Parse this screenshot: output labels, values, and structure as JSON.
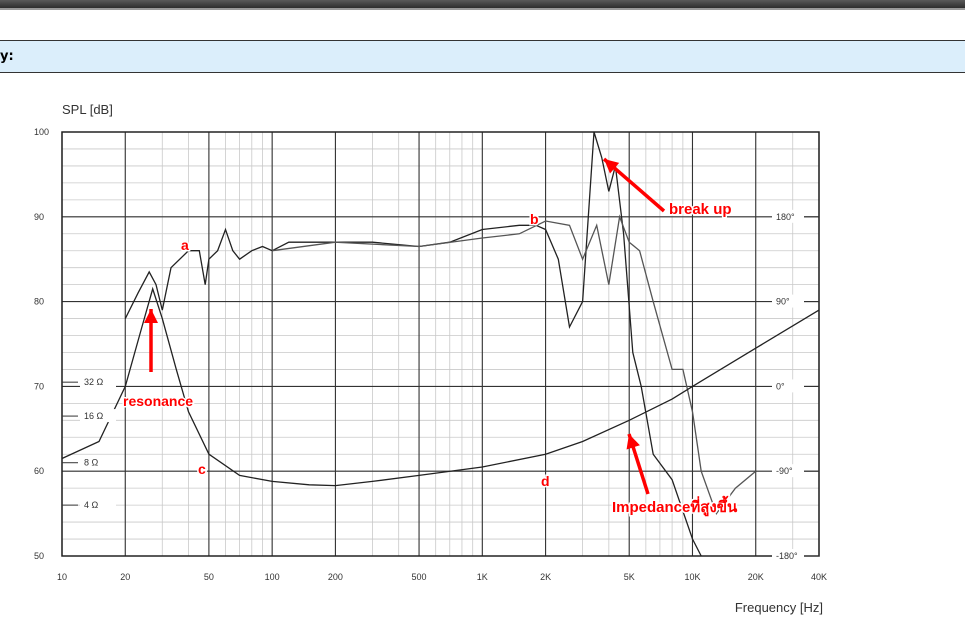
{
  "header": {
    "label": "y:"
  },
  "chart_data": {
    "type": "line",
    "ylabel": "SPL  [dB]",
    "xlabel": "Frequency  [Hz]",
    "xscale": "log",
    "xlim": [
      10,
      40000
    ],
    "ylim": [
      50,
      100
    ],
    "x_ticks": [
      "10",
      "20",
      "50",
      "100",
      "200",
      "500",
      "1K",
      "2K",
      "5K",
      "10K",
      "20K",
      "40K"
    ],
    "y_ticks": [
      "50",
      "60",
      "70",
      "80",
      "90",
      "100"
    ],
    "impedance_ticks": [
      "32 Ω",
      "16 Ω",
      "8 Ω",
      "4 Ω"
    ],
    "phase_ticks": [
      "180°",
      "90°",
      "0°",
      "-90°",
      "-180°"
    ],
    "grid": true,
    "series": [
      {
        "values": [
          [
            20,
            78
          ],
          [
            23,
            81
          ],
          [
            26,
            83.5
          ],
          [
            28,
            82
          ],
          [
            30,
            79
          ],
          [
            33,
            84
          ],
          [
            40,
            86
          ],
          [
            45,
            86
          ],
          [
            48,
            82
          ],
          [
            50,
            85
          ],
          [
            55,
            86
          ],
          [
            60,
            88.5
          ],
          [
            65,
            86
          ],
          [
            70,
            85
          ],
          [
            80,
            86
          ],
          [
            90,
            86.5
          ],
          [
            100,
            86
          ],
          [
            120,
            87
          ],
          [
            150,
            87
          ],
          [
            200,
            87
          ],
          [
            300,
            87
          ],
          [
            500,
            86.5
          ],
          [
            700,
            87
          ],
          [
            1000,
            88.5
          ],
          [
            1500,
            89
          ],
          [
            1800,
            89
          ],
          [
            2000,
            88.5
          ],
          [
            2300,
            85
          ],
          [
            2600,
            77
          ],
          [
            3000,
            80
          ],
          [
            3400,
            100
          ],
          [
            3700,
            97
          ],
          [
            4000,
            93
          ],
          [
            4300,
            96
          ],
          [
            4700,
            88
          ],
          [
            5200,
            74
          ],
          [
            5700,
            70
          ],
          [
            6500,
            62
          ],
          [
            8000,
            59
          ],
          [
            10000,
            52
          ],
          [
            11000,
            50
          ]
        ]
      },
      {
        "values": [
          [
            100,
            86
          ],
          [
            200,
            87
          ],
          [
            500,
            86.5
          ],
          [
            1000,
            87.5
          ],
          [
            1500,
            88
          ],
          [
            2000,
            89.5
          ],
          [
            2600,
            89
          ],
          [
            3000,
            85
          ],
          [
            3500,
            89
          ],
          [
            4000,
            82
          ],
          [
            4500,
            90
          ],
          [
            5000,
            87
          ],
          [
            5600,
            86
          ],
          [
            6500,
            80
          ],
          [
            8000,
            72
          ],
          [
            9000,
            72
          ],
          [
            10000,
            67
          ],
          [
            11000,
            60
          ],
          [
            13000,
            55
          ],
          [
            16000,
            58
          ],
          [
            20000,
            60
          ]
        ]
      },
      {
        "values": [
          [
            10,
            61.5
          ],
          [
            15,
            63.5
          ],
          [
            20,
            70
          ],
          [
            24,
            77
          ],
          [
            27,
            81.5
          ],
          [
            30,
            78
          ],
          [
            35,
            72
          ],
          [
            40,
            67
          ],
          [
            50,
            62
          ],
          [
            70,
            59.5
          ],
          [
            100,
            58.8
          ],
          [
            150,
            58.4
          ],
          [
            200,
            58.3
          ],
          [
            300,
            58.8
          ],
          [
            500,
            59.5
          ],
          [
            1000,
            60.5
          ],
          [
            2000,
            62
          ],
          [
            3000,
            63.5
          ],
          [
            5000,
            66
          ],
          [
            8000,
            68.5
          ],
          [
            10000,
            70
          ],
          [
            20000,
            74.5
          ],
          [
            40000,
            79
          ]
        ]
      }
    ],
    "annotations": [
      {
        "text": "a",
        "color": "#ff0000"
      },
      {
        "text": "b",
        "color": "#ff0000"
      },
      {
        "text": "c",
        "color": "#ff0000"
      },
      {
        "text": "d",
        "color": "#ff0000"
      },
      {
        "text": "resonance",
        "color": "#ff0000"
      },
      {
        "text": "break up",
        "color": "#ff0000"
      },
      {
        "text": "Impedanceที่สูงขึ้น",
        "color": "#ff0000"
      }
    ]
  }
}
